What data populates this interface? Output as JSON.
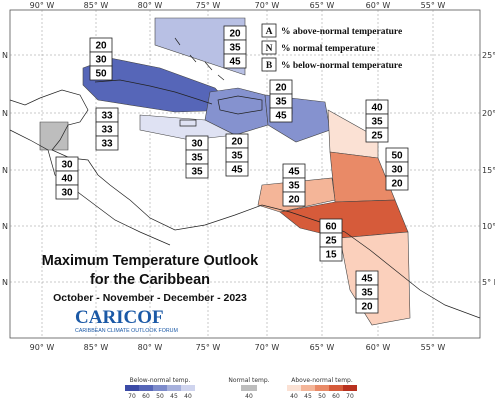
{
  "map": {
    "title_line1": "Maximum Temperature Outlook",
    "title_line2": "for the Caribbean",
    "period": "October - November - December - 2023",
    "logo_text": "CARICOF",
    "logo_subtitle": "CARIBBEAN CLIMATE OUTLOOK FORUM",
    "lon_labels": [
      "90° W",
      "85° W",
      "80° W",
      "75° W",
      "70° W",
      "65° W",
      "60° W",
      "55° W"
    ],
    "lat_labels_right": [
      "25° N",
      "20° N",
      "15° N",
      "10° N",
      "5° N"
    ],
    "lat_label_left": "N"
  },
  "legend": {
    "items": [
      {
        "key": "A",
        "text": "% above-normal temperature"
      },
      {
        "key": "N",
        "text": "% normal temperature"
      },
      {
        "key": "B",
        "text": "% below-normal temperature"
      }
    ]
  },
  "colorbar": {
    "below_title": "Below-normal temp.",
    "below_ticks": [
      "70",
      "60",
      "50",
      "45",
      "40"
    ],
    "normal_title": "Normal temp.",
    "normal_ticks": [
      "40"
    ],
    "above_title": "Above-normal temp.",
    "above_ticks": [
      "40",
      "45",
      "50",
      "60",
      "70"
    ],
    "colors": {
      "below": [
        "#3b4aa6",
        "#5666b8",
        "#7d8bcb",
        "#a6b0dc",
        "#cfd4ee"
      ],
      "normal": "#bdbdbd",
      "above": [
        "#fbe1d4",
        "#f4b598",
        "#e98a67",
        "#d65b3a",
        "#b8311f"
      ]
    }
  },
  "boxes": [
    {
      "region": "bahamas",
      "values": [
        "20",
        "35",
        "45"
      ]
    },
    {
      "region": "cuba-west",
      "values": [
        "20",
        "30",
        "50"
      ]
    },
    {
      "region": "belize",
      "values": [
        "33",
        "33",
        "33"
      ]
    },
    {
      "region": "central-america",
      "values": [
        "30",
        "40",
        "30"
      ]
    },
    {
      "region": "jamaica",
      "values": [
        "30",
        "35",
        "35"
      ]
    },
    {
      "region": "hispaniola",
      "values": [
        "20",
        "35",
        "45"
      ]
    },
    {
      "region": "puerto-rico",
      "values": [
        "20",
        "35",
        "45"
      ]
    },
    {
      "region": "leeward-islands",
      "values": [
        "40",
        "35",
        "25"
      ]
    },
    {
      "region": "windward-islands",
      "values": [
        "50",
        "30",
        "20"
      ]
    },
    {
      "region": "aruba-curacao",
      "values": [
        "45",
        "35",
        "20"
      ]
    },
    {
      "region": "trinidad",
      "values": [
        "60",
        "25",
        "15"
      ]
    },
    {
      "region": "guianas",
      "values": [
        "45",
        "35",
        "20"
      ]
    }
  ]
}
